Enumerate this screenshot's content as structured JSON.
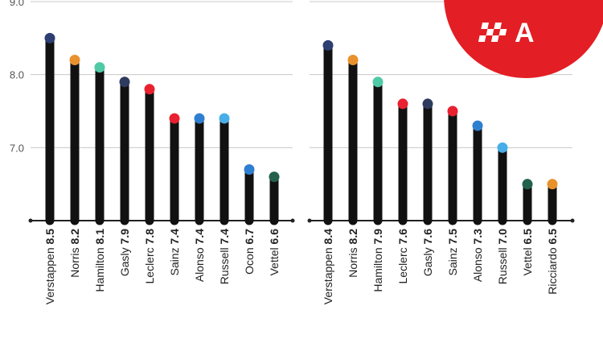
{
  "colors": {
    "logo_red": "#e31e24",
    "stem": "#111111",
    "grid": "#c8c8c8"
  },
  "logo": {
    "icon": "checkered-flag-icon",
    "letter": "A"
  },
  "chart_data": [
    {
      "type": "lollipop",
      "ylim": [
        6.0,
        9.0
      ],
      "yticks": [
        "9.0",
        "8.0",
        "7.0"
      ],
      "grid": true,
      "categories": [
        "Verstappen",
        "Norris",
        "Hamilton",
        "Gasly",
        "Leclerc",
        "Sainz",
        "Alonso",
        "Russell",
        "Ocon",
        "Vettel"
      ],
      "values": [
        8.5,
        8.2,
        8.1,
        7.9,
        7.8,
        7.4,
        7.4,
        7.4,
        6.7,
        6.6
      ],
      "value_labels": [
        "8.5",
        "8.2",
        "8.1",
        "7.9",
        "7.8",
        "7.4",
        "7.4",
        "7.4",
        "6.7",
        "6.6"
      ],
      "dot_colors": [
        "#2d3e73",
        "#e8912d",
        "#4fc9a6",
        "#2f3b5e",
        "#e8202f",
        "#e8202f",
        "#2f7fd0",
        "#48aee8",
        "#2f7fd0",
        "#23614b"
      ]
    },
    {
      "type": "lollipop",
      "ylim": [
        6.0,
        9.0
      ],
      "yticks": [
        "9.0",
        "8.0",
        "7.0"
      ],
      "grid": true,
      "categories": [
        "Verstappen",
        "Norris",
        "Hamilton",
        "Leclerc",
        "Gasly",
        "Sainz",
        "Alonso",
        "Russell",
        "Vettel",
        "Ricciardo"
      ],
      "values": [
        8.4,
        8.2,
        7.9,
        7.6,
        7.6,
        7.5,
        7.3,
        7.0,
        6.5,
        6.5
      ],
      "value_labels": [
        "8.4",
        "8.2",
        "7.9",
        "7.6",
        "7.6",
        "7.5",
        "7.3",
        "7.0",
        "6.5",
        "6.5"
      ],
      "dot_colors": [
        "#2d3e73",
        "#e8912d",
        "#4fc9a6",
        "#e8202f",
        "#2f3b5e",
        "#e8202f",
        "#2f7fd0",
        "#48aee8",
        "#23614b",
        "#e8912d"
      ]
    }
  ]
}
